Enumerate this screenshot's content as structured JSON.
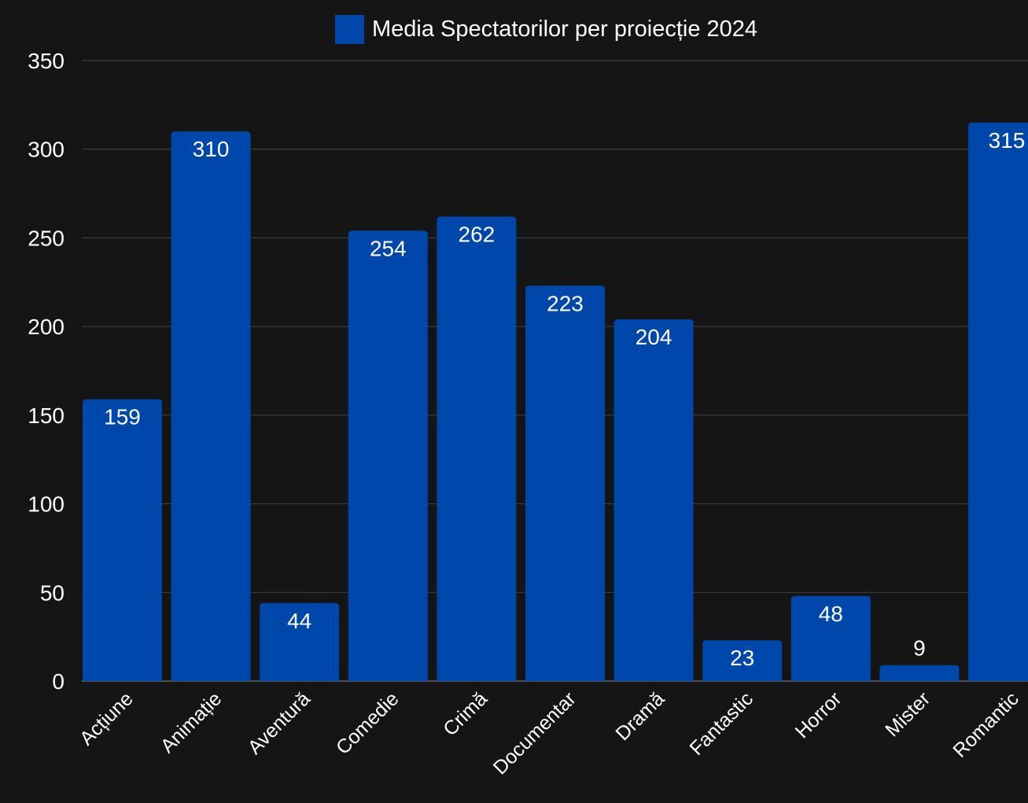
{
  "chart_data": {
    "type": "bar",
    "categories": [
      "Acțiune",
      "Animație",
      "Aventură",
      "Comedie",
      "Crimă",
      "Documentar",
      "Dramă",
      "Fantastic",
      "Horror",
      "Mister",
      "Romantic"
    ],
    "series": [
      {
        "name": "Media Spectatorilor per proiecție 2024",
        "values": [
          159,
          310,
          44,
          254,
          262,
          223,
          204,
          23,
          48,
          9,
          315
        ],
        "color": "#0047ab"
      }
    ],
    "ylim": [
      0,
      350
    ],
    "yticks": [
      0,
      50,
      100,
      150,
      200,
      250,
      300,
      350
    ],
    "grid": true,
    "legend_position": "top-center",
    "data_labels": true,
    "background_color": "#151515",
    "text_color": "#ffffff",
    "grid_color": "#444444"
  }
}
